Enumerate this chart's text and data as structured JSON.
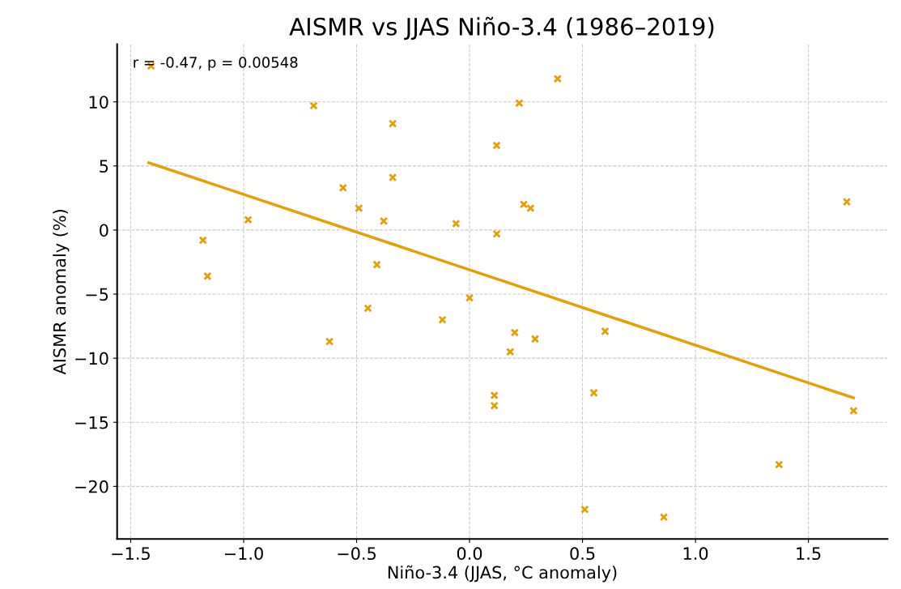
{
  "chart_data": {
    "type": "scatter",
    "title": "AISMR vs JJAS Niño-3.4 (1986–2019)",
    "xlabel": "Niño-3.4 (JJAS, °C anomaly)",
    "ylabel": "AISMR anomaly (%)",
    "annotations": [
      "r = -0.47, p = 0.00548"
    ],
    "series": [
      {
        "color": "#e69f00",
        "marker": "cross",
        "x": [
          -1.41,
          -0.69,
          -0.34,
          -0.34,
          -0.56,
          -0.49,
          -0.38,
          -0.98,
          -1.18,
          -1.16,
          -0.41,
          -0.45,
          -0.62,
          -0.12,
          -0.06,
          0.0,
          0.12,
          0.12,
          0.22,
          0.39,
          0.24,
          0.27,
          0.2,
          0.29,
          0.18,
          0.6,
          0.11,
          0.11,
          0.55,
          1.67,
          1.7,
          1.37,
          0.51,
          0.86
        ],
        "values": [
          12.8,
          9.7,
          8.3,
          4.1,
          3.3,
          1.7,
          0.7,
          0.8,
          -0.8,
          -3.6,
          -2.7,
          -6.1,
          -8.7,
          -7.0,
          0.5,
          -5.3,
          6.6,
          -0.3,
          9.9,
          11.8,
          2.0,
          1.7,
          -8.0,
          -8.5,
          -9.5,
          -7.9,
          -12.9,
          -13.7,
          -12.7,
          2.2,
          -14.1,
          -18.3,
          -21.8,
          -22.4
        ]
      },
      {
        "type": "line",
        "color": "#e69f00",
        "marker": "none",
        "line_style": "solid",
        "x": [
          -1.42,
          1.7
        ],
        "values": [
          5.25,
          -13.1
        ]
      }
    ],
    "xlim": [
      -1.56,
      1.85
    ],
    "ylim": [
      -24.1,
      14.5
    ],
    "xticks": [
      {
        "value": -1.5,
        "label": "−1.5"
      },
      {
        "value": -1.0,
        "label": "−1.0"
      },
      {
        "value": -0.5,
        "label": "−0.5"
      },
      {
        "value": 0,
        "label": "0.0"
      },
      0.5,
      {
        "value": 1,
        "label": "1.0"
      },
      1.5
    ],
    "yticks": [
      {
        "value": -20,
        "label": "−20"
      },
      {
        "value": -15,
        "label": "−15"
      },
      {
        "value": -10,
        "label": "−10"
      },
      {
        "value": -5,
        "label": "−5"
      },
      0,
      5,
      10
    ],
    "grid": true,
    "legend": false
  }
}
